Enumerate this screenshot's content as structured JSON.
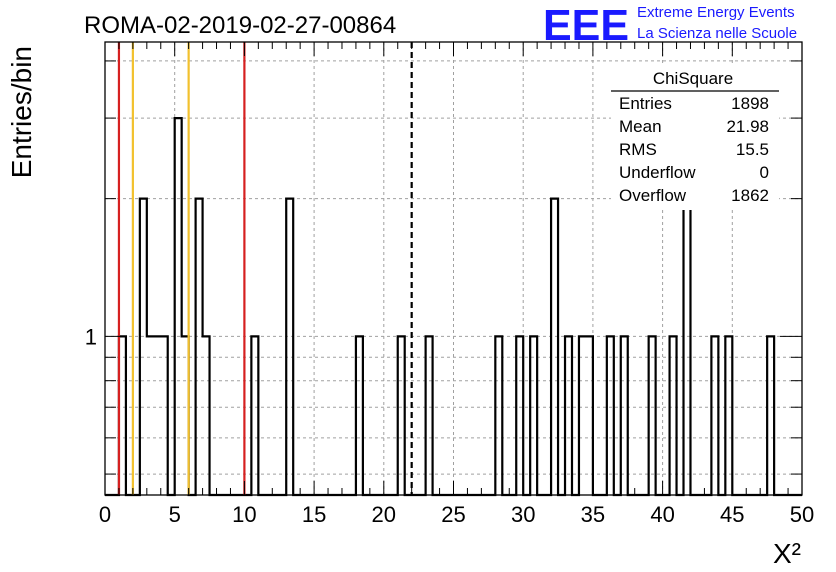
{
  "header": {
    "run_title": "ROMA-02-2019-02-27-00864",
    "logo_text": "EEE",
    "logo_line1": "Extreme Energy Events",
    "logo_line2": "La Scienza nelle Scuole",
    "logo_color": "#1a1aff"
  },
  "stats_box": {
    "title": "ChiSquare",
    "rows": [
      {
        "label": "Entries",
        "value": "1898"
      },
      {
        "label": "Mean",
        "value": "21.98"
      },
      {
        "label": "RMS",
        "value": "15.5"
      },
      {
        "label": "Underflow",
        "value": "0"
      },
      {
        "label": "Overflow",
        "value": "1862"
      }
    ]
  },
  "chart_data": {
    "type": "histogram",
    "xlabel": "X²",
    "ylabel": "Entries/bin",
    "xlim": [
      0,
      50
    ],
    "x_ticks": [
      0,
      5,
      10,
      15,
      20,
      25,
      30,
      35,
      40,
      45,
      50
    ],
    "y_scale": "log",
    "ylim": [
      0.45,
      4.4
    ],
    "y_tick_labels": [
      {
        "value": 1,
        "label": "1"
      }
    ],
    "bin_width": 0.5,
    "bins": [
      {
        "x0": 1.0,
        "count": 1
      },
      {
        "x0": 2.5,
        "count": 2
      },
      {
        "x0": 3.0,
        "count": 1
      },
      {
        "x0": 3.5,
        "count": 1
      },
      {
        "x0": 4.0,
        "count": 1
      },
      {
        "x0": 5.0,
        "count": 3
      },
      {
        "x0": 5.5,
        "count": 1
      },
      {
        "x0": 6.5,
        "count": 2
      },
      {
        "x0": 7.0,
        "count": 1
      },
      {
        "x0": 10.5,
        "count": 1
      },
      {
        "x0": 13.0,
        "count": 2
      },
      {
        "x0": 18.0,
        "count": 1
      },
      {
        "x0": 21.0,
        "count": 1
      },
      {
        "x0": 23.0,
        "count": 1
      },
      {
        "x0": 28.0,
        "count": 1
      },
      {
        "x0": 29.5,
        "count": 1
      },
      {
        "x0": 30.5,
        "count": 1
      },
      {
        "x0": 32.0,
        "count": 2
      },
      {
        "x0": 33.0,
        "count": 1
      },
      {
        "x0": 34.0,
        "count": 1
      },
      {
        "x0": 34.5,
        "count": 1
      },
      {
        "x0": 36.0,
        "count": 1
      },
      {
        "x0": 37.0,
        "count": 1
      },
      {
        "x0": 39.0,
        "count": 1
      },
      {
        "x0": 40.5,
        "count": 1
      },
      {
        "x0": 41.5,
        "count": 2
      },
      {
        "x0": 43.5,
        "count": 1
      },
      {
        "x0": 44.5,
        "count": 1
      },
      {
        "x0": 47.5,
        "count": 1
      }
    ],
    "reference_lines": [
      {
        "x": 1,
        "color": "#d62020",
        "style": "solid"
      },
      {
        "x": 2,
        "color": "#f2c12e",
        "style": "solid"
      },
      {
        "x": 6,
        "color": "#f2c12e",
        "style": "solid"
      },
      {
        "x": 10,
        "color": "#d62020",
        "style": "solid"
      },
      {
        "x": 22,
        "color": "#000000",
        "style": "dashed"
      }
    ],
    "grid": true
  }
}
